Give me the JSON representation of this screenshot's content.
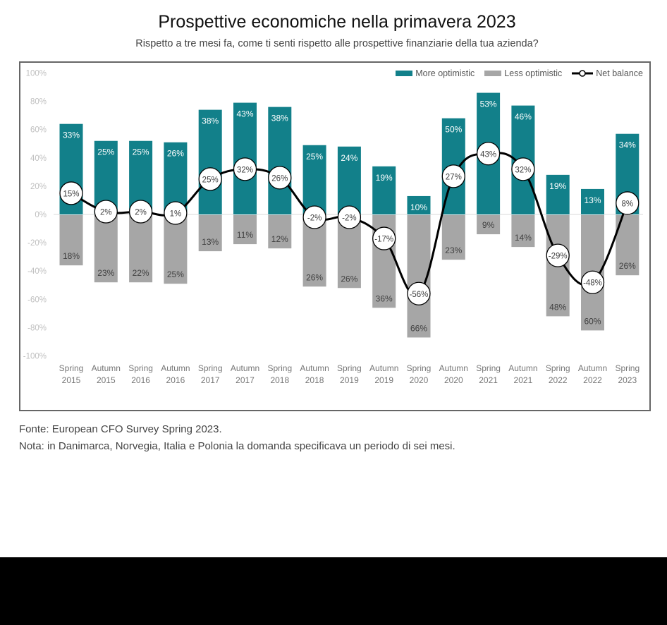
{
  "header": {
    "title": "Prospettive economiche nella primavera 2023",
    "subtitle": "Rispetto a tre mesi fa, come ti senti rispetto alle prospettive finanziarie della tua azienda?"
  },
  "footer": {
    "source": "Fonte: European CFO Survey Spring 2023.",
    "note": "Nota: in Danimarca, Norvegia, Italia e Polonia la domanda specificava un periodo di sei mesi."
  },
  "colors": {
    "more": "#12808A",
    "less": "#A6A6A6",
    "line": "#000000"
  },
  "chart_data": {
    "type": "bar",
    "title": "Prospettive economiche nella primavera 2023",
    "xlabel": "",
    "ylabel": "",
    "ylim": [
      -100,
      100
    ],
    "yticks": [
      "100%",
      "80%",
      "60%",
      "40%",
      "20%",
      "0%",
      "-20%",
      "-40%",
      "-60%",
      "-80%",
      "-100%"
    ],
    "ytick_values": [
      100,
      80,
      60,
      40,
      20,
      0,
      -20,
      -40,
      -60,
      -80,
      -100
    ],
    "legend": {
      "placement": "top-right",
      "entries": [
        "More optimistic",
        "Less optimistic",
        "Net balance"
      ]
    },
    "categories": [
      [
        "Spring",
        "2015"
      ],
      [
        "Autumn",
        "2015"
      ],
      [
        "Spring",
        "2016"
      ],
      [
        "Autumn",
        "2016"
      ],
      [
        "Spring",
        "2017"
      ],
      [
        "Autumn",
        "2017"
      ],
      [
        "Spring",
        "2018"
      ],
      [
        "Autumn",
        "2018"
      ],
      [
        "Spring",
        "2019"
      ],
      [
        "Autumn",
        "2019"
      ],
      [
        "Spring",
        "2020"
      ],
      [
        "Autumn",
        "2020"
      ],
      [
        "Spring",
        "2021"
      ],
      [
        "Autumn",
        "2021"
      ],
      [
        "Spring",
        "2022"
      ],
      [
        "Autumn",
        "2022"
      ],
      [
        "Spring",
        "2023"
      ]
    ],
    "series": [
      {
        "name": "More optimistic",
        "type": "bar",
        "labels": [
          "33%",
          "25%",
          "25%",
          "26%",
          "38%",
          "43%",
          "38%",
          "25%",
          "24%",
          "19%",
          "10%",
          "50%",
          "53%",
          "46%",
          "19%",
          "13%",
          "34%"
        ],
        "plotted_extent": [
          64,
          52,
          52,
          51,
          74,
          79,
          76,
          49,
          48,
          34,
          13,
          68,
          86,
          77,
          28,
          18,
          57
        ]
      },
      {
        "name": "Less optimistic",
        "type": "bar",
        "labels": [
          "18%",
          "23%",
          "22%",
          "25%",
          "13%",
          "11%",
          "12%",
          "26%",
          "26%",
          "36%",
          "66%",
          "23%",
          "9%",
          "14%",
          "48%",
          "60%",
          "26%"
        ],
        "plotted_extent": [
          -36,
          -48,
          -48,
          -49,
          -26,
          -21,
          -24,
          -51,
          -52,
          -66,
          -87,
          -32,
          -14,
          -23,
          -72,
          -82,
          -43
        ]
      },
      {
        "name": "Net balance",
        "type": "line",
        "values": [
          15,
          2,
          2,
          1,
          25,
          32,
          26,
          -2,
          -2,
          -17,
          -56,
          27,
          43,
          32,
          -29,
          -48,
          8
        ],
        "labels": [
          "15%",
          "2%",
          "2%",
          "1%",
          "25%",
          "32%",
          "26%",
          "-2%",
          "-2%",
          "-17%",
          "-56%",
          "27%",
          "43%",
          "32%",
          "-29%",
          "-48%",
          "8%"
        ]
      }
    ]
  }
}
